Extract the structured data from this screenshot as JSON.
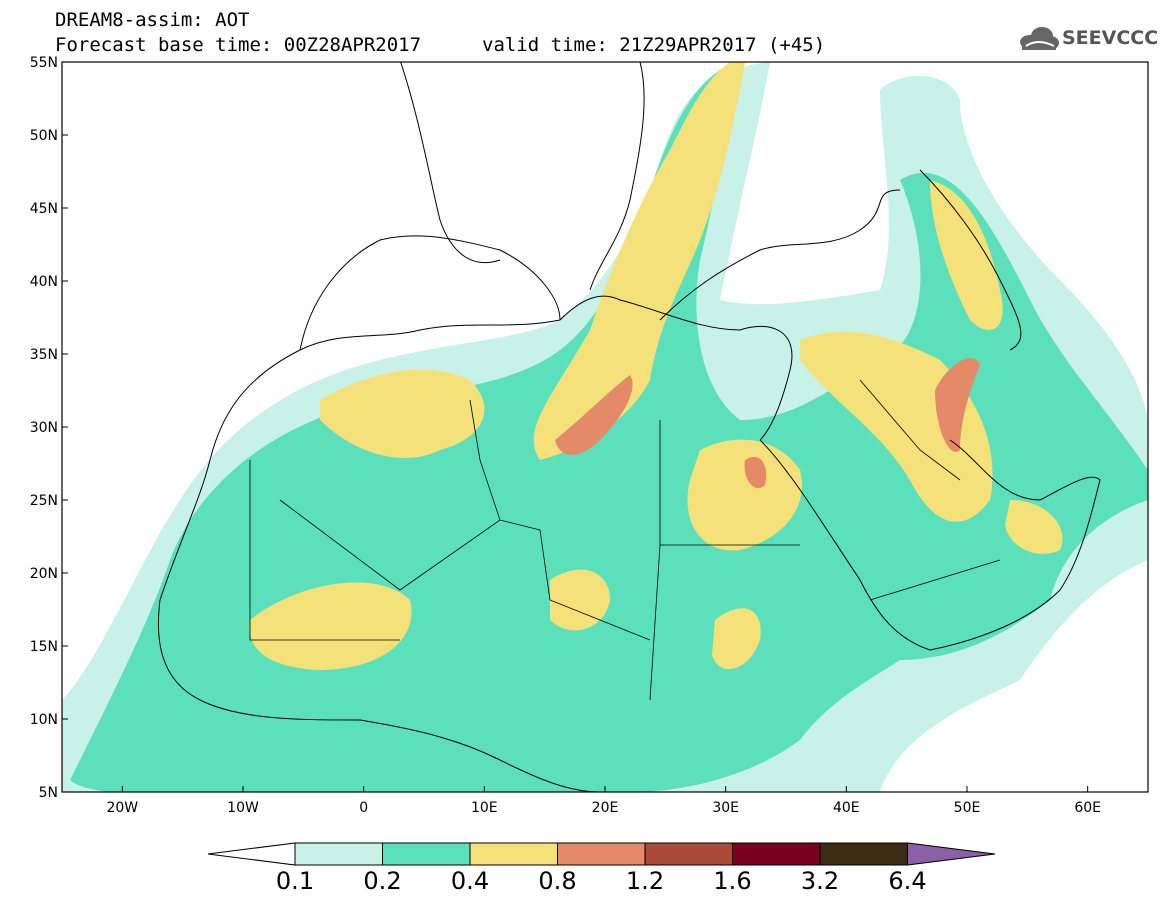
{
  "header": {
    "model_line": "DREAM8-assim: AOT",
    "base_time_line": "Forecast base time: 00Z28APR2017",
    "valid_time_line": "valid time: 21Z29APR2017 (+45)",
    "logo_text": "SEEVCCC"
  },
  "map": {
    "lat_labels": [
      "55N",
      "50N",
      "45N",
      "40N",
      "35N",
      "30N",
      "25N",
      "20N",
      "15N",
      "10N",
      "5N"
    ],
    "lon_labels": [
      "20W",
      "10W",
      "0",
      "10E",
      "20E",
      "30E",
      "40E",
      "50E",
      "60E"
    ],
    "lat_range": [
      5,
      55
    ],
    "lon_range": [
      -25,
      65
    ],
    "colors": {
      "c0": "#c8f2e8",
      "c1": "#5ce0bc",
      "c2": "#f5e17a",
      "c3": "#e48a68"
    }
  },
  "colorbar": {
    "labels": [
      "0.1",
      "0.2",
      "0.4",
      "0.8",
      "1.2",
      "1.6",
      "3.2",
      "6.4"
    ],
    "colors": [
      "#ffffff",
      "#c8f2e8",
      "#5ce0bc",
      "#f5e17a",
      "#e48a68",
      "#a94a3a",
      "#7a0020",
      "#3b2a14",
      "#8a60a8"
    ]
  }
}
